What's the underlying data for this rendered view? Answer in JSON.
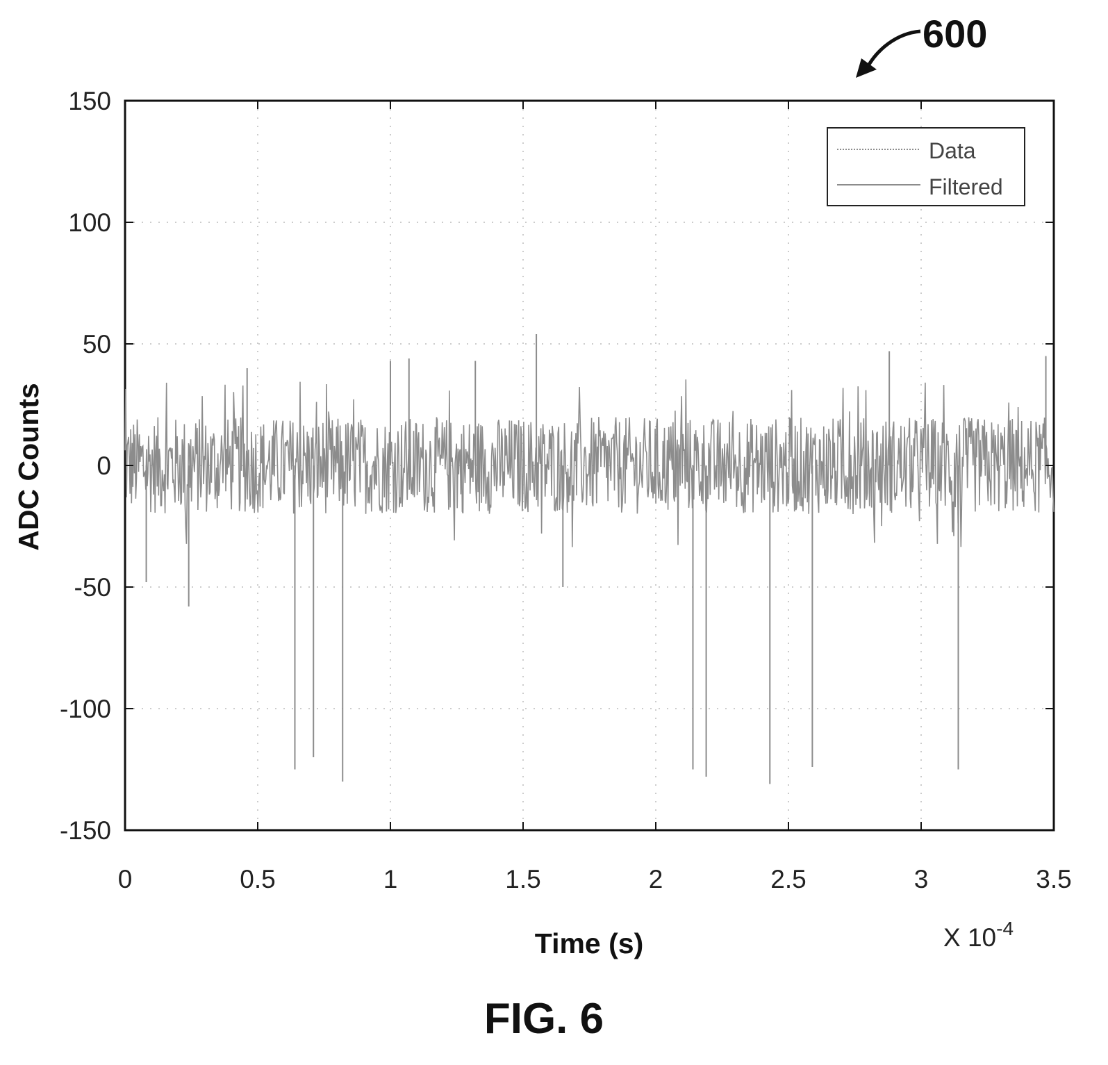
{
  "figure": {
    "ref_number": "600",
    "caption": "FIG. 6"
  },
  "chart_data": {
    "type": "line",
    "x_multiplier": {
      "base": "X 10",
      "exponent": "-4"
    },
    "xlabel": "Time (s)",
    "ylabel": "ADC Counts",
    "xlim": [
      0,
      3.5
    ],
    "ylim": [
      -150,
      150
    ],
    "x_ticks": [
      0,
      0.5,
      1,
      1.5,
      2,
      2.5,
      3,
      3.5
    ],
    "x_tick_labels": [
      "0",
      "0.5",
      "1",
      "1.5",
      "2",
      "2.5",
      "3",
      "3.5"
    ],
    "y_ticks": [
      150,
      100,
      50,
      0,
      -50,
      -100,
      -150
    ],
    "y_tick_labels": [
      "150",
      "100",
      "50",
      "0",
      "-50",
      "-100",
      "-150"
    ],
    "grid": true,
    "legend_position": "top-right",
    "colors": {
      "data": "#8c8c8c",
      "filtered": "#8c8c8c"
    },
    "series": [
      {
        "name": "Data",
        "description_note": null,
        "noise_band": [
          -20,
          20
        ],
        "spikes": [
          {
            "x": 0.64,
            "y": -125
          },
          {
            "x": 0.71,
            "y": -120
          },
          {
            "x": 0.82,
            "y": -130
          },
          {
            "x": 2.14,
            "y": -125
          },
          {
            "x": 2.19,
            "y": -128
          },
          {
            "x": 2.43,
            "y": -131
          },
          {
            "x": 2.59,
            "y": -124
          },
          {
            "x": 3.14,
            "y": -125
          },
          {
            "x": 1.55,
            "y": 54
          },
          {
            "x": 1.0,
            "y": 43
          },
          {
            "x": 1.07,
            "y": 44
          },
          {
            "x": 1.32,
            "y": 43
          },
          {
            "x": 2.88,
            "y": 47
          },
          {
            "x": 3.47,
            "y": 45
          },
          {
            "x": 0.46,
            "y": 40
          },
          {
            "x": 0.24,
            "y": -58
          },
          {
            "x": 1.65,
            "y": -50
          },
          {
            "x": 0.08,
            "y": -48
          }
        ]
      },
      {
        "name": "Filtered"
      }
    ]
  }
}
